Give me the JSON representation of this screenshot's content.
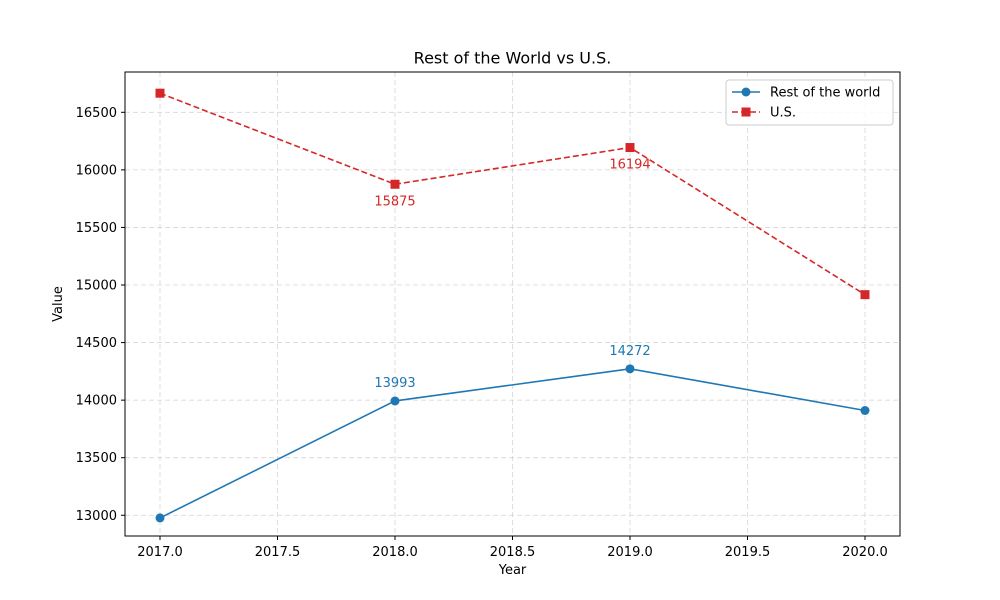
{
  "chart_data": {
    "type": "line",
    "title": "Rest of the World vs U.S.",
    "xlabel": "Year",
    "ylabel": "Value",
    "xlim": [
      1.9,
      2.9
    ],
    "x_tick_values": [
      2017.0,
      2017.5,
      2018.0,
      2018.5,
      2019.0,
      2019.5,
      2020.0
    ],
    "x_tick_labels": [
      "2017.0",
      "2017.5",
      "2018.0",
      "2018.5",
      "2019.0",
      "2019.5",
      "2020.0"
    ],
    "ylim": [
      12820,
      16850
    ],
    "y_ticks": [
      13000,
      13500,
      14000,
      14500,
      15000,
      15500,
      16000,
      16500
    ],
    "grid": true,
    "legend_position": "top-right",
    "series": [
      {
        "name": "Rest of the world",
        "color": "#1f77b4",
        "line_style": "solid",
        "marker": "circle",
        "x": [
          2017,
          2018,
          2019,
          2020
        ],
        "values": [
          12977,
          13993,
          14272,
          13910
        ],
        "labels": [
          {
            "x": 2018,
            "value": 13993,
            "text": "13993",
            "position": "above"
          },
          {
            "x": 2019,
            "value": 14272,
            "text": "14272",
            "position": "above"
          }
        ]
      },
      {
        "name": "U.S.",
        "color": "#d62728",
        "line_style": "dashed",
        "marker": "square",
        "x": [
          2017,
          2018,
          2019,
          2020
        ],
        "values": [
          16666,
          15875,
          16194,
          14916
        ],
        "labels": [
          {
            "x": 2018,
            "value": 15875,
            "text": "15875",
            "position": "below"
          },
          {
            "x": 2019,
            "value": 16194,
            "text": "16194",
            "position": "below"
          }
        ]
      }
    ]
  }
}
